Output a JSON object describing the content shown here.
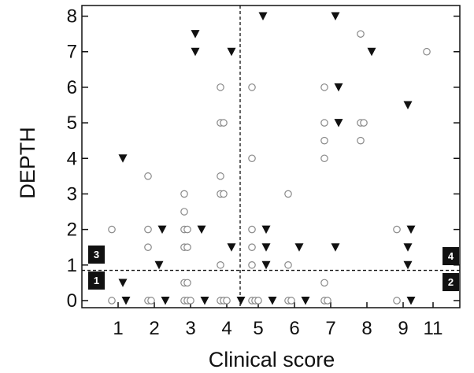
{
  "chart_data": {
    "type": "scatter",
    "title": "",
    "xlabel": "Clinical score",
    "ylabel": "DEPTH",
    "x_categories": [
      "1",
      "2",
      "3",
      "4",
      "5",
      "6",
      "7",
      "8",
      "9",
      "11"
    ],
    "y_ticks": [
      "0",
      "1",
      "2",
      "3",
      "4",
      "5",
      "6",
      "7",
      "8"
    ],
    "ylim": [
      -0.2,
      8.3
    ],
    "grid": false,
    "threshold_x": 4.5,
    "threshold_y": 0.85,
    "quadrant_labels": [
      {
        "text": "1",
        "position": "bottom-left"
      },
      {
        "text": "2",
        "position": "bottom-right"
      },
      {
        "text": "3",
        "position": "top-left"
      },
      {
        "text": "4",
        "position": "top-right"
      }
    ],
    "series": [
      {
        "marker": "open-circle",
        "color": "#888888",
        "points": [
          [
            1,
            2
          ],
          [
            1,
            0
          ],
          [
            2,
            3.5
          ],
          [
            2,
            2
          ],
          [
            2,
            1.5
          ],
          [
            2,
            0
          ],
          [
            2,
            0
          ],
          [
            3,
            3
          ],
          [
            3,
            2.5
          ],
          [
            3,
            2
          ],
          [
            3,
            2
          ],
          [
            3,
            1.5
          ],
          [
            3,
            1.5
          ],
          [
            3,
            0.5
          ],
          [
            3,
            0.5
          ],
          [
            3,
            0
          ],
          [
            3,
            0
          ],
          [
            3,
            0
          ],
          [
            4,
            6
          ],
          [
            4,
            5
          ],
          [
            4,
            5
          ],
          [
            4,
            3.5
          ],
          [
            4,
            3
          ],
          [
            4,
            3
          ],
          [
            4,
            1
          ],
          [
            4,
            0
          ],
          [
            4,
            0
          ],
          [
            4,
            0
          ],
          [
            5,
            6
          ],
          [
            5,
            4
          ],
          [
            5,
            2
          ],
          [
            5,
            1.5
          ],
          [
            5,
            1
          ],
          [
            5,
            0
          ],
          [
            5,
            0
          ],
          [
            5,
            0
          ],
          [
            6,
            3
          ],
          [
            6,
            1
          ],
          [
            6,
            0
          ],
          [
            6,
            0
          ],
          [
            7,
            6
          ],
          [
            7,
            5
          ],
          [
            7,
            4.5
          ],
          [
            7,
            4
          ],
          [
            7,
            0.5
          ],
          [
            7,
            0
          ],
          [
            7,
            0
          ],
          [
            8,
            7.5
          ],
          [
            8,
            5
          ],
          [
            8,
            5
          ],
          [
            8,
            4.5
          ],
          [
            9,
            2
          ],
          [
            9,
            0
          ],
          [
            11,
            7
          ]
        ]
      },
      {
        "marker": "filled-triangle-down",
        "color": "#111111",
        "points": [
          [
            1,
            4
          ],
          [
            1,
            0.5
          ],
          [
            1,
            0
          ],
          [
            2,
            2
          ],
          [
            2,
            1
          ],
          [
            2,
            0
          ],
          [
            3,
            7.5
          ],
          [
            3,
            7
          ],
          [
            3,
            2
          ],
          [
            3,
            0
          ],
          [
            4,
            7
          ],
          [
            4,
            1.5
          ],
          [
            4,
            0
          ],
          [
            5,
            8
          ],
          [
            5,
            2
          ],
          [
            5,
            1.5
          ],
          [
            5,
            1
          ],
          [
            5,
            0
          ],
          [
            6,
            1.5
          ],
          [
            6,
            0
          ],
          [
            7,
            8
          ],
          [
            7,
            6
          ],
          [
            7,
            5
          ],
          [
            7,
            1.5
          ],
          [
            8,
            7
          ],
          [
            9,
            5.5
          ],
          [
            9,
            2
          ],
          [
            9,
            1.5
          ],
          [
            9,
            1
          ],
          [
            9,
            0
          ]
        ]
      }
    ]
  }
}
